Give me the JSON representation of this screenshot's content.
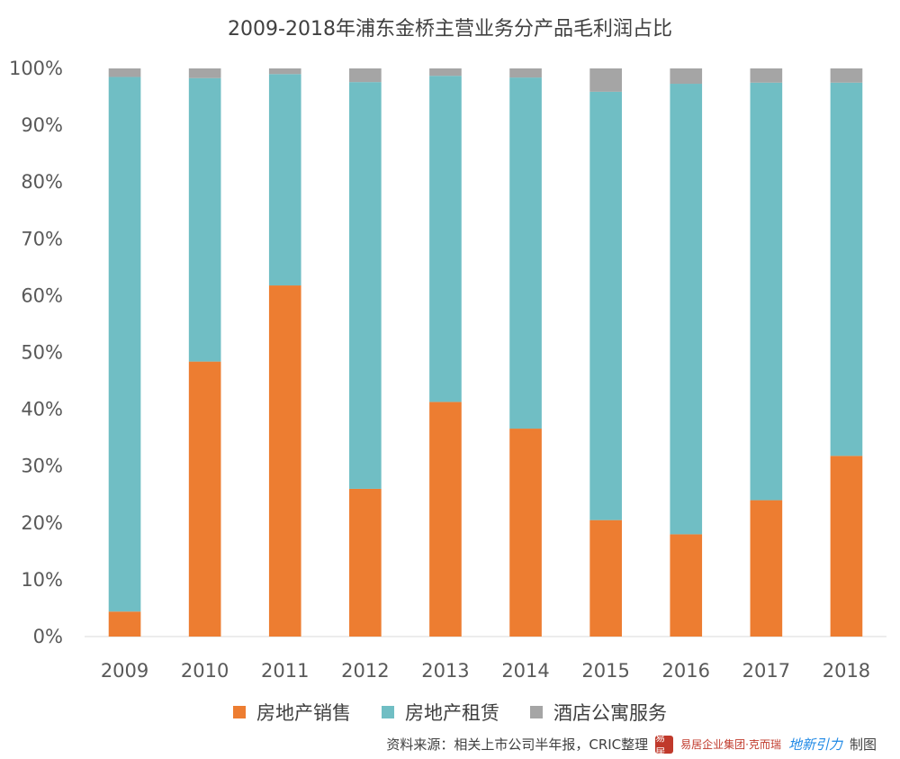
{
  "chart_data": {
    "type": "bar",
    "stacked": true,
    "title": "2009-2018年浦东金桥主营业务分产品毛利润占比",
    "categories": [
      "2009",
      "2010",
      "2011",
      "2012",
      "2013",
      "2014",
      "2015",
      "2016",
      "2017",
      "2018"
    ],
    "series": [
      {
        "name": "房地产销售",
        "color": "#ED7D31",
        "values": [
          4.4,
          48.4,
          61.8,
          26.0,
          41.3,
          36.6,
          20.5,
          18.0,
          24.0,
          31.8
        ]
      },
      {
        "name": "房地产租赁",
        "color": "#70BEC4",
        "values": [
          94.1,
          49.9,
          37.2,
          71.6,
          57.4,
          61.8,
          75.4,
          79.3,
          73.5,
          65.7
        ]
      },
      {
        "name": "酒店公寓服务",
        "color": "#A5A5A5",
        "values": [
          1.5,
          1.7,
          1.0,
          2.4,
          1.3,
          1.6,
          4.1,
          2.7,
          2.5,
          2.5
        ]
      }
    ],
    "ylim": [
      0,
      100
    ],
    "yticks": [
      "0%",
      "10%",
      "20%",
      "30%",
      "40%",
      "50%",
      "60%",
      "70%",
      "80%",
      "90%",
      "100%"
    ],
    "grid": false,
    "legend": "bottom"
  },
  "footer": {
    "source": "资料来源：相关上市公司半年报，CRIC整理",
    "logo_seal": "易居",
    "logo_company": "易居企业集团·克而瑞",
    "logo_brand": "地新引力",
    "made_by": "制图"
  }
}
